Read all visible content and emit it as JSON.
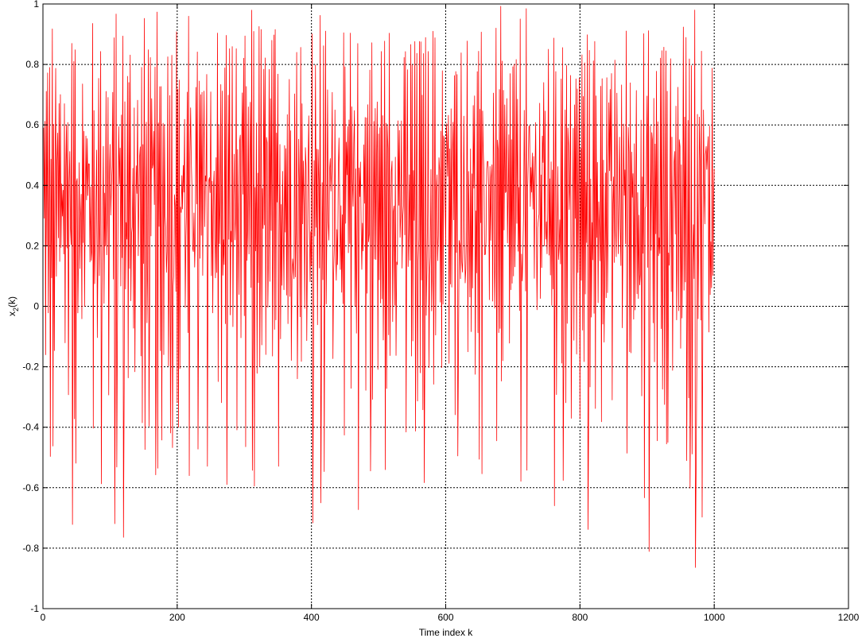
{
  "chart_data": {
    "type": "line",
    "title": "",
    "xlabel": "Time index k",
    "ylabel": "x",
    "ylabel_subscript": "2",
    "ylabel_suffix": "(k)",
    "xlim": [
      0,
      1200
    ],
    "ylim": [
      -1,
      1
    ],
    "x_ticks": [
      0,
      200,
      400,
      600,
      800,
      1000,
      1200
    ],
    "y_ticks": [
      -1,
      -0.8,
      -0.6,
      -0.4,
      -0.2,
      0,
      0.2,
      0.4,
      0.6,
      0.8,
      1
    ],
    "x_tick_labels": [
      "0",
      "200",
      "400",
      "600",
      "800",
      "1000",
      "1200"
    ],
    "y_tick_labels": [
      "-1",
      "-0.8",
      "-0.6",
      "-0.4",
      "-0.2",
      "0",
      "0.2",
      "0.4",
      "0.6",
      "0.8",
      "1"
    ],
    "grid": true,
    "grid_style": "dotted",
    "series": [
      {
        "color": "#ff0000",
        "x_start": 1,
        "x_end": 1000,
        "value_range": [
          -1,
          1
        ],
        "shape": "chaotic signal filling the range"
      }
    ]
  }
}
